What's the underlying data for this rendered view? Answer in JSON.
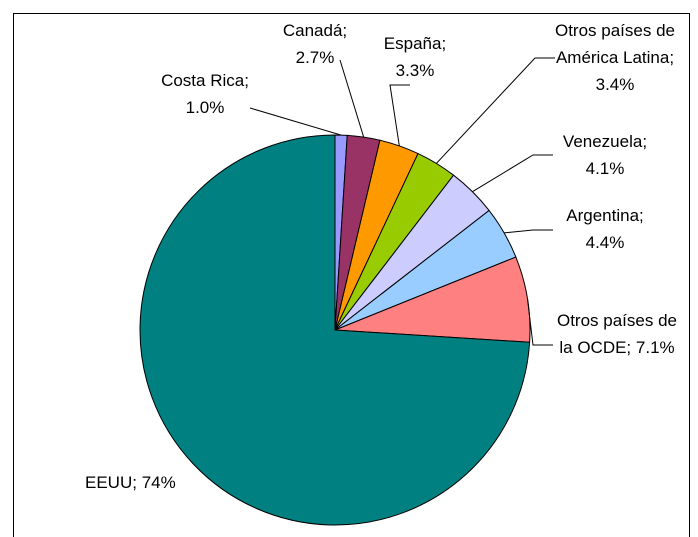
{
  "chart_data": {
    "type": "pie",
    "categories": [
      "Costa Rica;",
      "Canadá;",
      "España;",
      "Otros países de América Latina;",
      "Venezuela;",
      "Argentina;",
      "Otros países de la OCDE;",
      "EEUU;"
    ],
    "values": [
      1.0,
      2.7,
      3.3,
      3.4,
      4.1,
      4.4,
      7.1,
      74
    ],
    "value_labels": [
      "1.0%",
      "2.7%",
      "3.3%",
      "3.4%",
      "4.1%",
      "4.4%",
      "7.1%",
      "74%"
    ],
    "colors": [
      "#9999ff",
      "#993366",
      "#ff9900",
      "#99cc00",
      "#ccccff",
      "#99ccff",
      "#ff8080",
      "#008080"
    ]
  }
}
